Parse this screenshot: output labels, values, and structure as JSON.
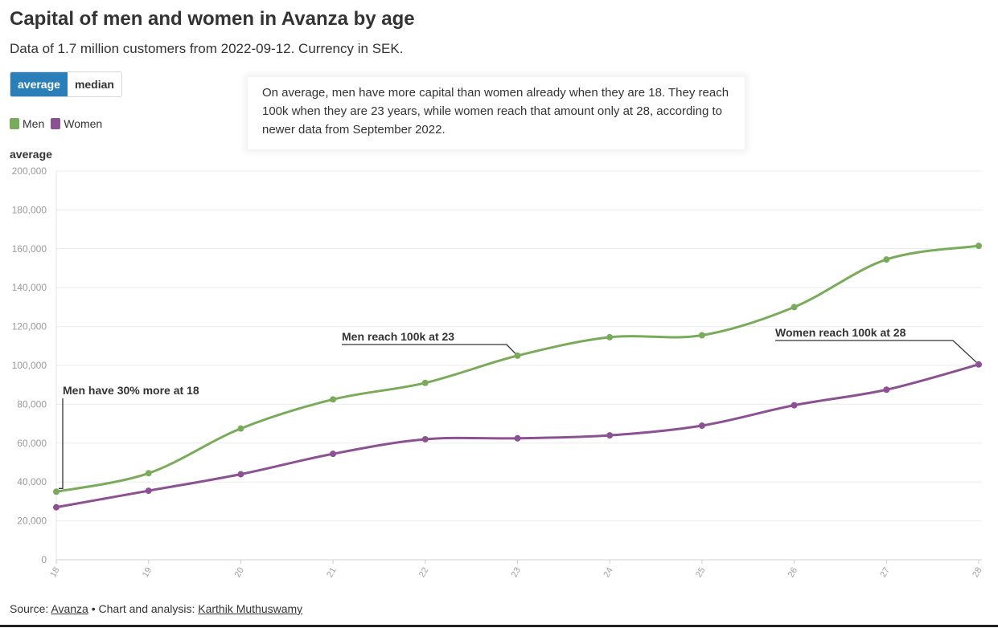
{
  "title": "Capital of men and women in Avanza by age",
  "subtitle": "Data of 1.7 million customers from 2022-09-12. Currency in SEK.",
  "toggle": {
    "active_label": "average",
    "inactive_label": "median"
  },
  "legend": {
    "men": "Men",
    "women": "Women"
  },
  "note": "On average, men have more capital than women already when they are 18. They reach 100k when they are 23 years, while women reach that amount only at 28, according to newer data from September 2022.",
  "footer": {
    "source_prefix": "Source:",
    "source_name": "Avanza",
    "separator": "•",
    "analysis_prefix": "Chart and analysis:",
    "author": "Karthik Muthuswamy"
  },
  "colors": {
    "men": "#7aab5a",
    "women": "#8c5192",
    "accent": "#2b7fb8"
  },
  "chart_data": {
    "type": "line",
    "title": "Capital of men and women in Avanza by age",
    "ylabel": "average",
    "xlabel": "",
    "x": [
      18,
      19,
      20,
      21,
      22,
      23,
      24,
      25,
      26,
      27,
      28
    ],
    "ylim": [
      0,
      200000
    ],
    "yticks": [
      0,
      20000,
      40000,
      60000,
      80000,
      100000,
      120000,
      140000,
      160000,
      180000,
      200000
    ],
    "ytick_labels": [
      "0",
      "20,000",
      "40,000",
      "60,000",
      "80,000",
      "100,000",
      "120,000",
      "140,000",
      "160,000",
      "180,000",
      "200,000"
    ],
    "grid": true,
    "legend_position": "top-left",
    "series": [
      {
        "name": "Men",
        "color": "#7aab5a",
        "values": [
          35000,
          44500,
          67500,
          82500,
          91000,
          105000,
          114500,
          115500,
          130000,
          154500,
          161500
        ]
      },
      {
        "name": "Women",
        "color": "#8c5192",
        "values": [
          27000,
          35500,
          44000,
          54500,
          62000,
          62500,
          64000,
          69000,
          79500,
          87500,
          100500
        ]
      }
    ],
    "annotations": [
      {
        "text": "Men have 30% more at 18",
        "x": 18,
        "y": 35000
      },
      {
        "text": "Men reach 100k at 23",
        "x": 23,
        "y": 105000
      },
      {
        "text": "Women reach 100k at 28",
        "x": 28,
        "y": 100500
      }
    ]
  }
}
